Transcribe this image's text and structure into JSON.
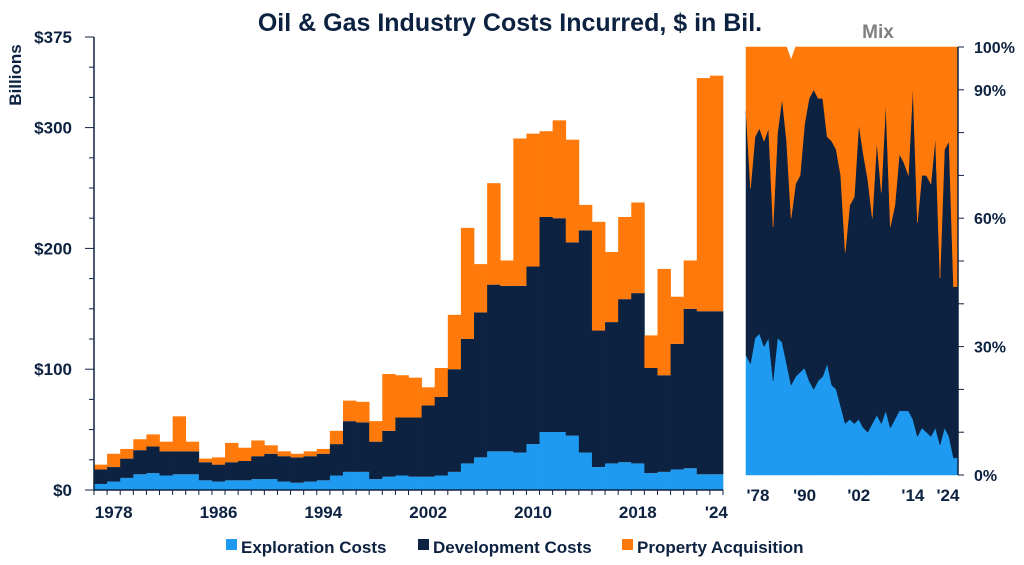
{
  "title": "Oil & Gas Industry Costs Incurred, $ in Bil.",
  "colors": {
    "exploration": "#1e9bf0",
    "development": "#0d2240",
    "acquisition": "#ff7a0a",
    "text": "#0d2240",
    "mix_title": "#7f7f7f"
  },
  "legend": [
    {
      "label": "Exploration Costs",
      "color_key": "exploration"
    },
    {
      "label": "Development Costs",
      "color_key": "development"
    },
    {
      "label": "Property Acquisition",
      "color_key": "acquisition"
    }
  ],
  "mix_title": "Mix",
  "chart_data": [
    {
      "type": "bar",
      "stacked": true,
      "title": "Oil & Gas Industry Costs Incurred, $ in Bil.",
      "ylabel": "Billions",
      "ylim": [
        0,
        375
      ],
      "yticks": [
        0,
        100,
        200,
        300,
        375
      ],
      "yticklabels": [
        "$0",
        "$100",
        "$200",
        "$300",
        "$375"
      ],
      "xlabels_shown": [
        "1978",
        "1986",
        "1994",
        "2002",
        "2010",
        "2018",
        "'24"
      ],
      "categories": [
        1977,
        1978,
        1979,
        1980,
        1981,
        1982,
        1983,
        1984,
        1985,
        1986,
        1987,
        1988,
        1989,
        1990,
        1991,
        1992,
        1993,
        1994,
        1995,
        1996,
        1997,
        1998,
        1999,
        2000,
        2001,
        2002,
        2003,
        2004,
        2005,
        2006,
        2007,
        2008,
        2009,
        2010,
        2011,
        2012,
        2013,
        2014,
        2015,
        2016,
        2017,
        2018,
        2019,
        2020,
        2021,
        2022,
        2023,
        2024
      ],
      "series": [
        {
          "name": "Exploration Costs",
          "values": [
            5,
            7,
            10,
            13,
            14,
            12,
            13,
            13,
            8,
            7,
            8,
            8,
            9,
            9,
            7,
            6,
            7,
            8,
            12,
            15,
            15,
            9,
            11,
            12,
            11,
            11,
            12,
            15,
            22,
            27,
            32,
            32,
            31,
            38,
            48,
            48,
            45,
            31,
            19,
            22,
            23,
            22,
            14,
            15,
            17,
            18,
            13,
            13
          ]
        },
        {
          "name": "Development Costs",
          "values": [
            12,
            12,
            16,
            20,
            22,
            20,
            19,
            19,
            15,
            14,
            15,
            16,
            19,
            21,
            21,
            21,
            21,
            22,
            26,
            42,
            41,
            31,
            38,
            48,
            49,
            59,
            65,
            85,
            103,
            120,
            138,
            137,
            138,
            147,
            178,
            177,
            160,
            184,
            113,
            117,
            135,
            141,
            87,
            80,
            104,
            132,
            135,
            135
          ]
        },
        {
          "name": "Property Acquisition",
          "values": [
            4,
            11,
            8,
            9,
            10,
            8,
            29,
            8,
            3,
            6,
            16,
            11,
            13,
            7,
            4,
            3,
            4,
            4,
            11,
            17,
            17,
            17,
            47,
            35,
            33,
            15,
            24,
            45,
            92,
            40,
            84,
            21,
            122,
            110,
            71,
            81,
            85,
            21,
            90,
            58,
            68,
            75,
            27,
            88,
            39,
            40,
            193,
            195
          ]
        }
      ]
    },
    {
      "type": "area",
      "stacked": true,
      "normalized": true,
      "title": "Mix",
      "ylim": [
        0,
        100
      ],
      "yticks": [
        0,
        30,
        60,
        90,
        100
      ],
      "yticklabels": [
        "0%",
        "30%",
        "60%",
        "90%",
        "100%"
      ],
      "xlabels_shown": [
        "'78",
        "'90",
        "'02",
        "'14",
        "'24"
      ],
      "x": [
        1977,
        1978,
        1979,
        1980,
        1981,
        1982,
        1983,
        1984,
        1985,
        1986,
        1987,
        1988,
        1989,
        1990,
        1991,
        1992,
        1993,
        1994,
        1995,
        1996,
        1997,
        1998,
        1999,
        2000,
        2001,
        2002,
        2003,
        2004,
        2005,
        2006,
        2007,
        2008,
        2009,
        2010,
        2011,
        2012,
        2013,
        2014,
        2015,
        2016,
        2017,
        2018,
        2019,
        2020,
        2021,
        2022,
        2023,
        2024
      ],
      "series": [
        {
          "name": "Exploration Costs",
          "values": [
            28,
            26,
            32,
            33,
            30,
            32,
            22,
            32,
            31,
            26,
            21,
            23,
            24,
            25,
            22,
            20,
            22,
            23,
            26,
            21,
            20,
            16,
            12,
            13,
            12,
            13,
            11,
            10,
            12,
            14,
            12,
            15,
            11,
            13,
            15,
            15,
            15,
            13,
            9,
            11,
            10,
            9,
            11,
            7,
            11,
            9,
            4,
            4
          ]
        },
        {
          "name": "Development Costs",
          "values": [
            57,
            41,
            47,
            48,
            48,
            49,
            36,
            48,
            57,
            52,
            39,
            45,
            46,
            57,
            66,
            70,
            66,
            65,
            53,
            57,
            56,
            54,
            40,
            50,
            53,
            69,
            64,
            59,
            48,
            64,
            54,
            72,
            47,
            50,
            60,
            58,
            55,
            78,
            50,
            59,
            60,
            59,
            68,
            39,
            65,
            69,
            40,
            40
          ]
        },
        {
          "name": "Property Acquisition",
          "values": [
            15,
            33,
            21,
            19,
            22,
            19,
            42,
            20,
            12,
            22,
            37,
            32,
            30,
            18,
            12,
            10,
            12,
            12,
            21,
            22,
            24,
            30,
            48,
            37,
            35,
            18,
            25,
            31,
            40,
            22,
            34,
            13,
            42,
            37,
            25,
            27,
            30,
            9,
            41,
            30,
            30,
            32,
            21,
            54,
            24,
            22,
            56,
            56
          ]
        }
      ]
    }
  ]
}
